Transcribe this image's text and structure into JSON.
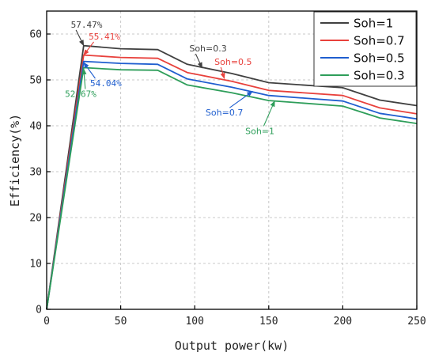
{
  "chart_data": {
    "type": "line",
    "xlabel": "Output power(kw)",
    "ylabel": "Efficiency(%)",
    "xlim": [
      0,
      250
    ],
    "ylim": [
      0,
      65
    ],
    "xticks": [
      0,
      50,
      100,
      150,
      200,
      250
    ],
    "yticks": [
      0,
      10,
      20,
      30,
      40,
      50,
      60
    ],
    "grid": true,
    "legend_position": "top-right",
    "series": [
      {
        "name": "Soh=1",
        "color": "#404040",
        "points": [
          [
            0,
            0
          ],
          [
            25,
            57.47
          ],
          [
            50,
            56.8
          ],
          [
            75,
            56.6
          ],
          [
            95,
            53.4
          ],
          [
            125,
            51.4
          ],
          [
            150,
            49.4
          ],
          [
            200,
            48.3
          ],
          [
            225,
            45.6
          ],
          [
            250,
            44.4
          ]
        ]
      },
      {
        "name": "Soh=0.7",
        "color": "#e8413c",
        "points": [
          [
            0,
            0
          ],
          [
            25,
            55.41
          ],
          [
            50,
            54.9
          ],
          [
            75,
            54.7
          ],
          [
            95,
            51.6
          ],
          [
            125,
            49.7
          ],
          [
            150,
            47.7
          ],
          [
            200,
            46.6
          ],
          [
            225,
            43.9
          ],
          [
            250,
            42.6
          ]
        ]
      },
      {
        "name": "Soh=0.5",
        "color": "#1f5ecf",
        "points": [
          [
            0,
            0
          ],
          [
            25,
            54.04
          ],
          [
            50,
            53.6
          ],
          [
            75,
            53.4
          ],
          [
            95,
            50.2
          ],
          [
            125,
            48.4
          ],
          [
            150,
            46.6
          ],
          [
            200,
            45.4
          ],
          [
            225,
            42.7
          ],
          [
            250,
            41.5
          ]
        ]
      },
      {
        "name": "Soh=0.3",
        "color": "#2e9e5a",
        "points": [
          [
            0,
            0
          ],
          [
            25,
            52.67
          ],
          [
            50,
            52.2
          ],
          [
            75,
            52.1
          ],
          [
            95,
            48.9
          ],
          [
            125,
            47.2
          ],
          [
            150,
            45.5
          ],
          [
            200,
            44.3
          ],
          [
            225,
            41.7
          ],
          [
            250,
            40.5
          ]
        ]
      }
    ],
    "annotations": [
      {
        "text": "57.47%",
        "color": "#404040",
        "mono": true,
        "target": [
          25,
          57.47
        ],
        "label": [
          27,
          61.4
        ]
      },
      {
        "text": "55.41%",
        "color": "#e8413c",
        "mono": true,
        "target": [
          25,
          55.41
        ],
        "label": [
          39,
          58.8
        ]
      },
      {
        "text": "54.04%",
        "color": "#1f5ecf",
        "mono": true,
        "target": [
          25,
          53.8
        ],
        "label": [
          40,
          48.6
        ]
      },
      {
        "text": "52.67%",
        "color": "#2e9e5a",
        "mono": true,
        "target": [
          25,
          52.4
        ],
        "label": [
          23,
          46.3
        ]
      },
      {
        "text": "Soh=0.3",
        "color": "#404040",
        "mono": false,
        "target": [
          105,
          52.6
        ],
        "label": [
          109,
          56.2
        ]
      },
      {
        "text": "Soh=0.5",
        "color": "#e8413c",
        "mono": false,
        "target": [
          120,
          50.3
        ],
        "label": [
          126,
          53.3
        ]
      },
      {
        "text": "Soh=0.7",
        "color": "#1f5ecf",
        "mono": false,
        "target": [
          139,
          47.5
        ],
        "label": [
          120,
          42.2
        ]
      },
      {
        "text": "Soh=1",
        "color": "#2e9e5a",
        "mono": false,
        "target": [
          154,
          45.4
        ],
        "label": [
          144,
          38.2
        ]
      }
    ]
  }
}
